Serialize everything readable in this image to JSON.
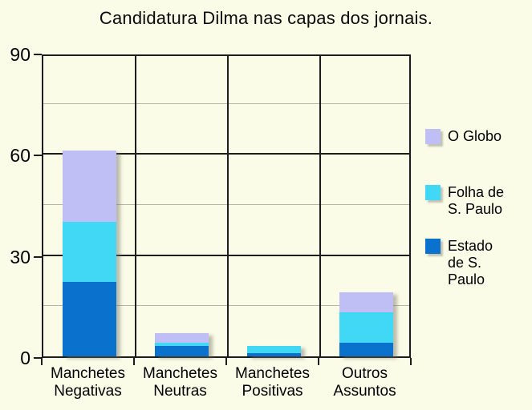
{
  "title": "Candidatura Dilma nas capas dos jornais.",
  "colors": {
    "background": "#fbfce8",
    "axis_and_major_grid": "#1c1c1c",
    "minor_grid": "#b5b5aa",
    "o_globo": "#bfbff5",
    "folha_de_s_paulo": "#41d8f5",
    "estado_de_s_paulo": "#0a71cd"
  },
  "chart_data": {
    "type": "bar",
    "stacked": true,
    "title": "Candidatura Dilma nas capas dos jornais.",
    "categories": [
      "Manchetes\nNegativas",
      "Manchetes\nNeutras",
      "Manchetes\nPositivas",
      "Outros\nAssuntos"
    ],
    "series": [
      {
        "name": "Estado de S. Paulo",
        "legend_label": "Estado\nde S.\nPaulo",
        "color": "#0a71cd",
        "values": [
          22,
          3,
          1,
          4
        ]
      },
      {
        "name": "Folha de S. Paulo",
        "legend_label": "Folha de\nS. Paulo",
        "color": "#41d8f5",
        "values": [
          18,
          1,
          2,
          9
        ]
      },
      {
        "name": "O Globo",
        "legend_label": "O Globo",
        "color": "#bfbff5",
        "values": [
          21,
          3,
          0,
          6
        ]
      }
    ],
    "stack_totals": [
      61,
      7,
      3,
      19
    ],
    "xlabel": "",
    "ylabel": "",
    "ylim": [
      0,
      90
    ],
    "yticks_major": [
      0,
      30,
      60,
      90
    ],
    "yticks_minor": [
      15,
      45,
      75
    ],
    "grid": true,
    "legend_position": "right",
    "legend_order_top_to_bottom": [
      "O Globo",
      "Folha de S. Paulo",
      "Estado de S. Paulo"
    ]
  }
}
